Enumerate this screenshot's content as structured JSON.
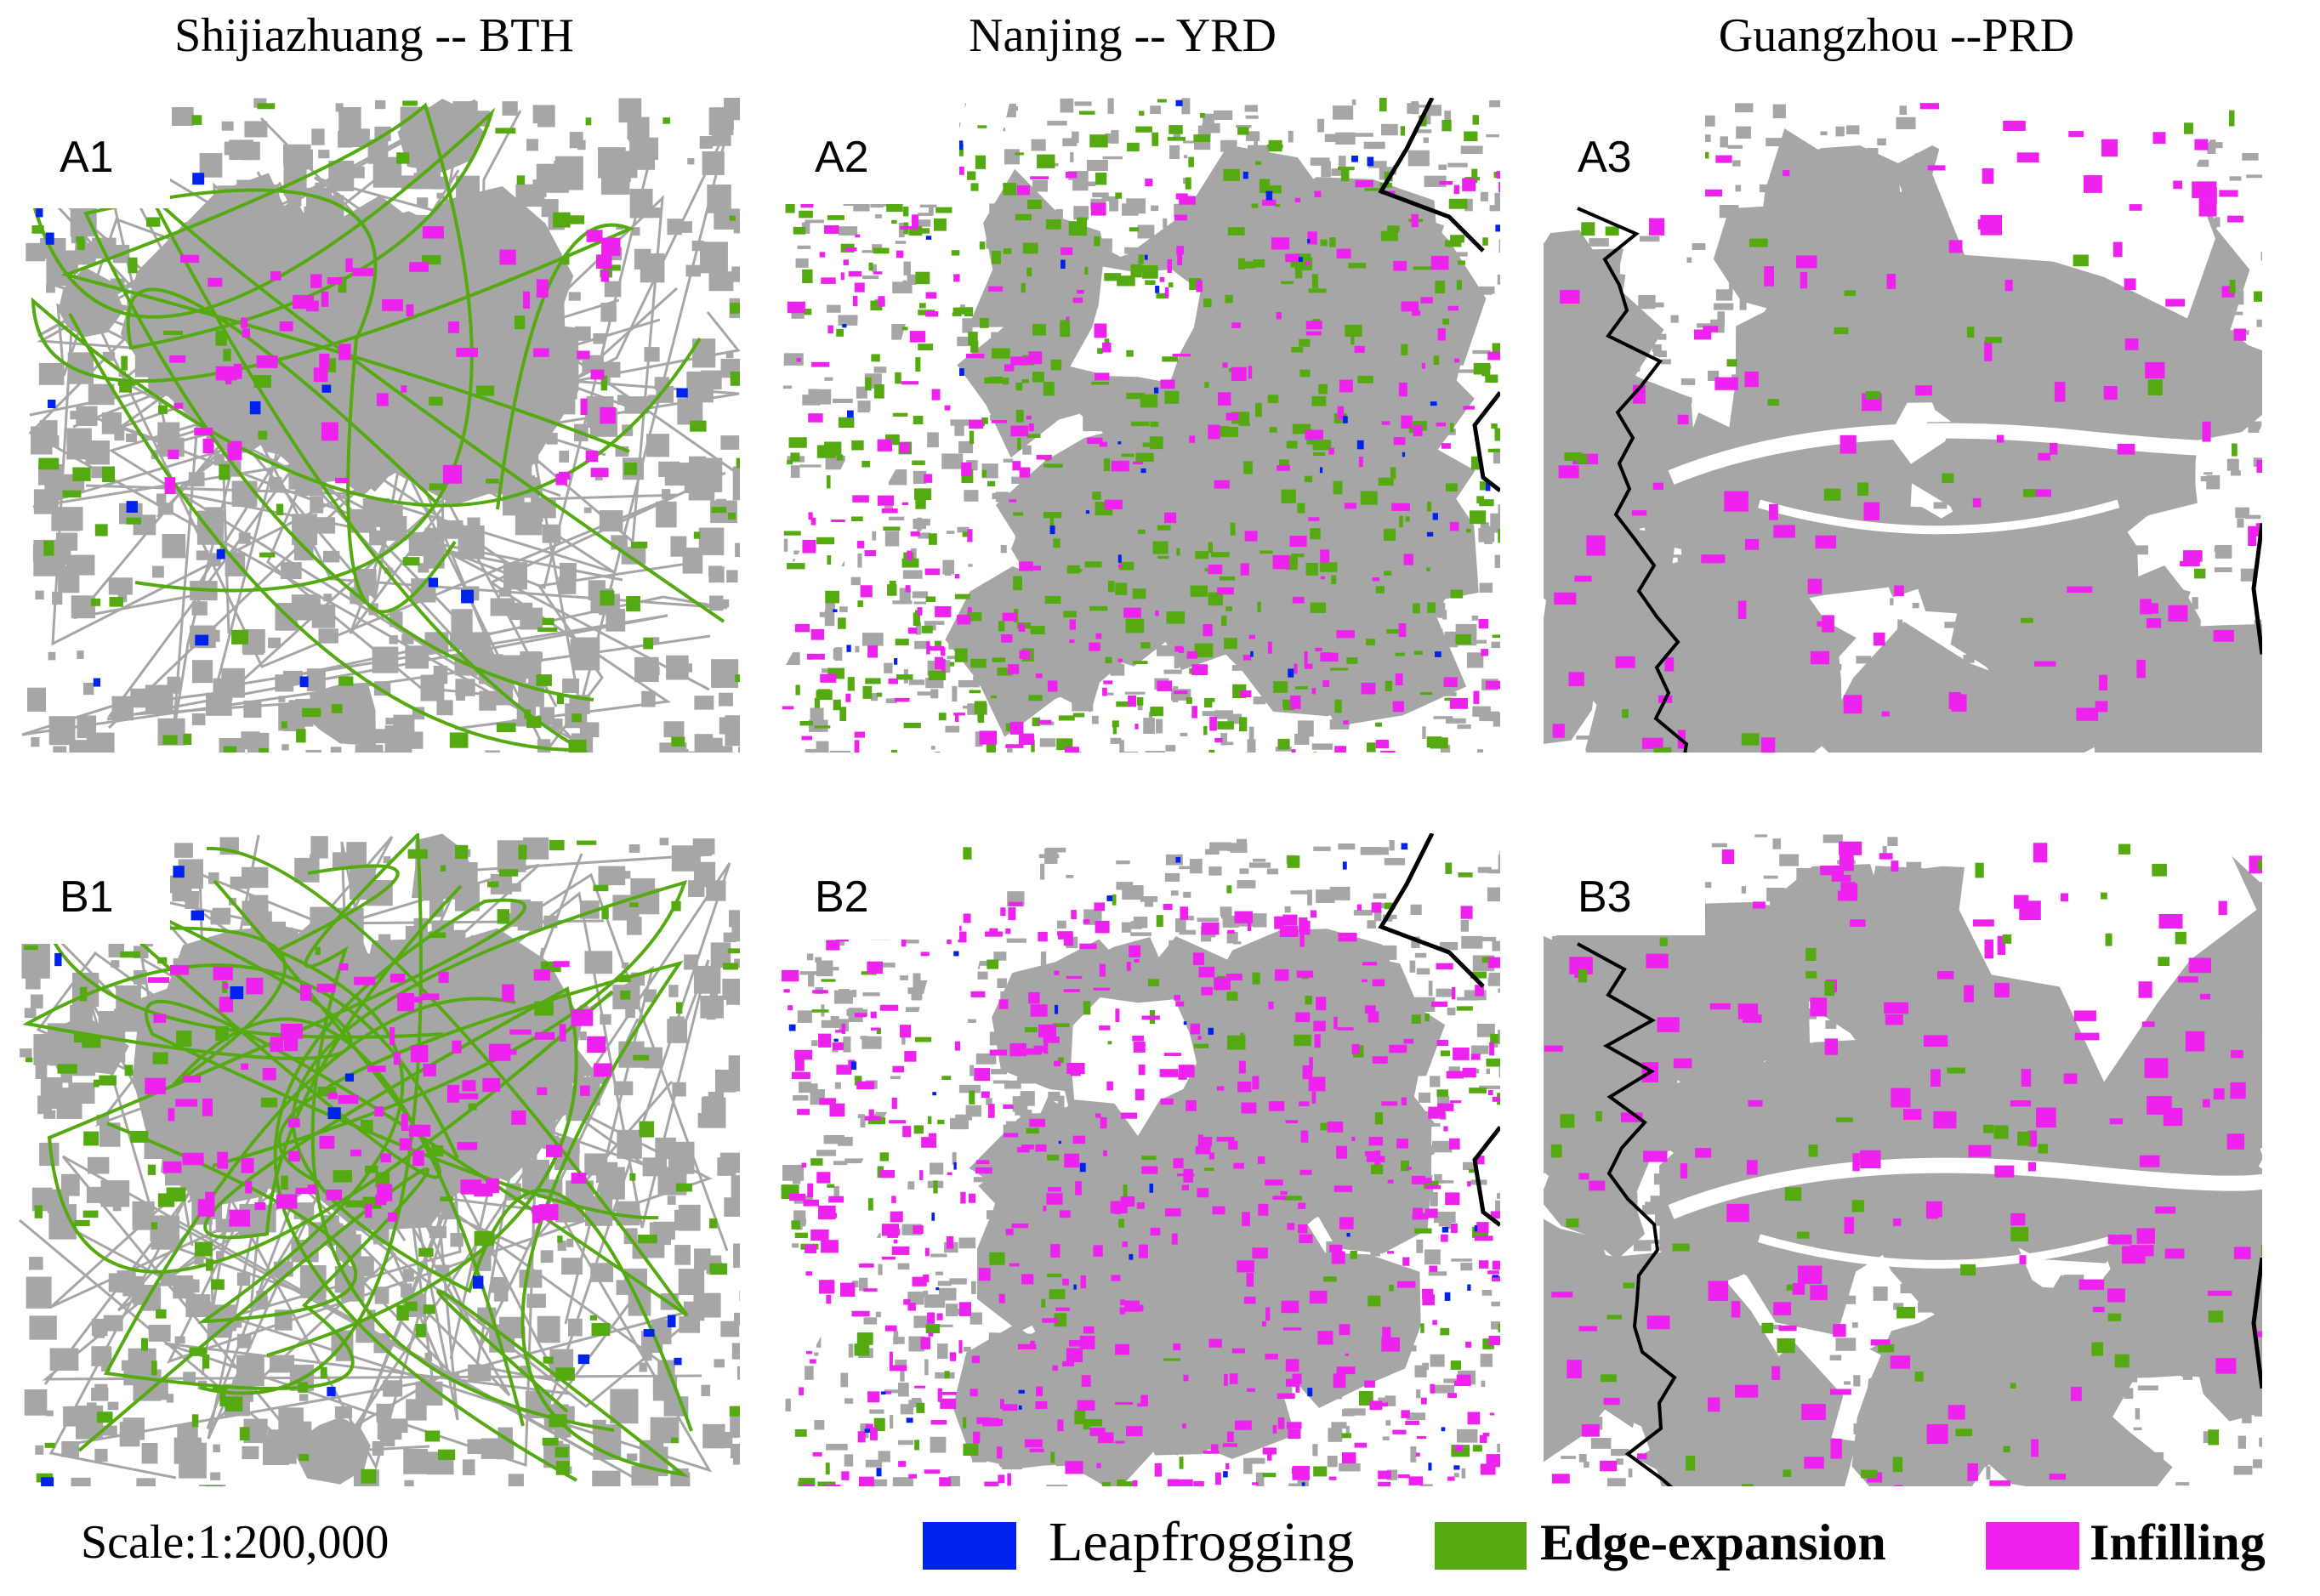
{
  "columns": [
    {
      "title": "Shijiazhuang -- BTH"
    },
    {
      "title": "Nanjing -- YRD"
    },
    {
      "title": "Guangzhou --PRD"
    }
  ],
  "panels": [
    {
      "label": "A1"
    },
    {
      "label": "A2"
    },
    {
      "label": "A3"
    },
    {
      "label": "B1"
    },
    {
      "label": "B2"
    },
    {
      "label": "B3"
    }
  ],
  "scale_text": "Scale:1:200,000",
  "legend": [
    {
      "label": "Leapfrogging",
      "color": "#0022ee"
    },
    {
      "label": "Edge-expansion",
      "color": "#55aa11"
    },
    {
      "label": "Infilling",
      "color": "#ee22ee"
    }
  ],
  "colors": {
    "built_up": "#a6a6a6",
    "background": "#ffffff",
    "boundary": "#000000"
  }
}
